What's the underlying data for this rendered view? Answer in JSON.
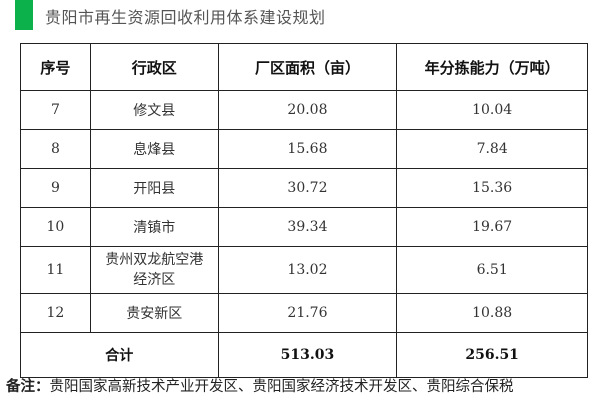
{
  "title": "贵阳市再生资源回收利用体系建设规划",
  "accent_color": "#0db14b",
  "table": {
    "headers": [
      "序号",
      "行政区",
      "厂区面积（亩）",
      "年分拣能力（万吨）"
    ],
    "rows": [
      [
        "7",
        "修文县",
        "20.08",
        "10.04"
      ],
      [
        "8",
        "息烽县",
        "15.68",
        "7.84"
      ],
      [
        "9",
        "开阳县",
        "30.72",
        "15.36"
      ],
      [
        "10",
        "清镇市",
        "39.34",
        "19.67"
      ],
      [
        "11",
        "贵州双龙航空港经济区",
        "13.02",
        "6.51"
      ],
      [
        "12",
        "贵安新区",
        "21.76",
        "10.88"
      ]
    ],
    "total": {
      "label": "合计",
      "area": "513.03",
      "capacity": "256.51"
    }
  },
  "note": {
    "label": "备注：",
    "text": "贵阳国家高新技术产业开发区、贵阳国家经济技术开发区、贵阳综合保税"
  }
}
